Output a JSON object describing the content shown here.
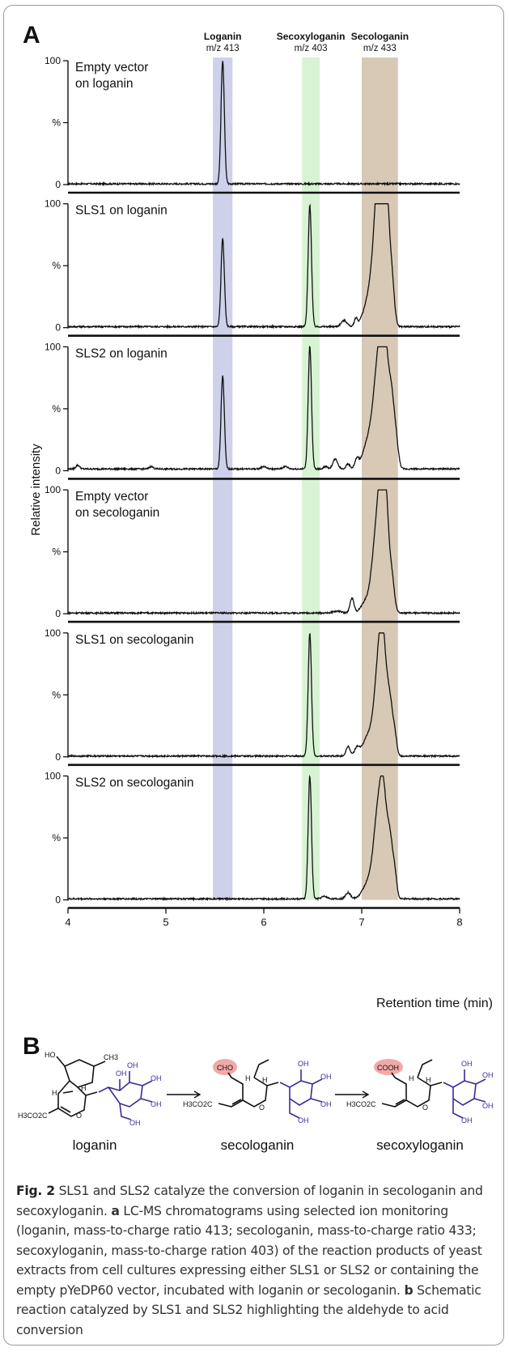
{
  "panel_a": {
    "letter": "A",
    "y_axis_label": "Relative intensity",
    "x_axis_label": "Retention time (min)"
  },
  "panel_b": {
    "letter": "B",
    "compounds": [
      {
        "name": "loganin",
        "substituents": [
          "HO",
          "CH3",
          "H",
          "H",
          "H3CO2C",
          "O",
          "OH"
        ]
      },
      {
        "name": "secologanin",
        "highlight": "CHO",
        "substituents": [
          "H",
          "H",
          "H3CO2C",
          "O",
          "OH"
        ]
      },
      {
        "name": "secoxyloganin",
        "highlight": "COOH",
        "substituents": [
          "H",
          "H",
          "H3CO2C",
          "O",
          "OH"
        ]
      }
    ],
    "colors": {
      "highlight": "#f2a8a8",
      "sugar": "#3d2a9a",
      "skeleton": "#111111"
    }
  },
  "caption": {
    "fig_label": "Fig. 2",
    "title_text": " SLS1 and SLS2 catalyze the conversion of loganin in secologanin and secoxyloganin. ",
    "part_a_letter": "a",
    "part_a_text": " LC-MS chromatograms using selected ion monitoring (loganin, mass-to-charge ratio 413; secologanin, mass-to-charge ratio 433; secoxyloganin, mass-to-charge ration 403) of the reaction products of yeast extracts from cell cultures expressing either SLS1 or SLS2 or containing the empty pYeDP60 vector, incubated with loganin or secologanin. ",
    "part_b_letter": "b",
    "part_b_text": " Schematic reaction catalyzed by SLS1 and SLS2 highlighting the aldehyde to acid conversion"
  },
  "chart_data": {
    "type": "line",
    "xlabel": "Retention time (min)",
    "ylabel": "Relative intensity",
    "xlim": [
      4,
      8
    ],
    "x_ticks": [
      "4",
      "5",
      "6",
      "7",
      "8"
    ],
    "y_ticks": [
      "0",
      "%",
      "100"
    ],
    "ylim": [
      0,
      100
    ],
    "grid": false,
    "highlight_bands": [
      {
        "name": "Loganin",
        "subtitle": "m/z 413",
        "x_range": [
          5.48,
          5.68
        ],
        "color": "#cfd0ea"
      },
      {
        "name": "Secoxyloganin",
        "subtitle": "m/z 403",
        "x_range": [
          6.39,
          6.57
        ],
        "color": "#d8f2d4"
      },
      {
        "name": "Secologanin",
        "subtitle": "m/z 433",
        "x_range": [
          7.0,
          7.37
        ],
        "color": "#d7c9b5"
      }
    ],
    "series": [
      {
        "label_lines": [
          "Empty vector",
          "on loganin"
        ],
        "baseline": 0.6,
        "peaks": [
          [
            5.58,
            99,
            0.017
          ]
        ],
        "wiggles": []
      },
      {
        "label_lines": [
          "SLS1 on loganin"
        ],
        "baseline": 0.8,
        "peaks": [
          [
            5.58,
            71,
            0.017
          ],
          [
            6.47,
            98,
            0.017
          ],
          [
            6.82,
            5,
            0.03
          ],
          [
            6.94,
            6,
            0.015
          ],
          [
            7.08,
            22,
            0.06
          ],
          [
            7.16,
            78,
            0.045
          ],
          [
            7.2,
            93,
            0.035
          ],
          [
            7.255,
            86,
            0.03
          ],
          [
            7.31,
            32,
            0.025
          ]
        ],
        "wiggles": []
      },
      {
        "label_lines": [
          "SLS2 on loganin"
        ],
        "baseline": 1.4,
        "peaks": [
          [
            4.1,
            3,
            0.02
          ],
          [
            4.85,
            2,
            0.02
          ],
          [
            5.58,
            75,
            0.017
          ],
          [
            6.0,
            2,
            0.025
          ],
          [
            6.22,
            2,
            0.025
          ],
          [
            6.47,
            99,
            0.017
          ],
          [
            6.63,
            2,
            0.02
          ],
          [
            6.73,
            8,
            0.025
          ],
          [
            6.86,
            4,
            0.02
          ],
          [
            6.95,
            7,
            0.02
          ],
          [
            7.08,
            25,
            0.06
          ],
          [
            7.17,
            75,
            0.045
          ],
          [
            7.23,
            92,
            0.035
          ],
          [
            7.3,
            55,
            0.03
          ],
          [
            7.35,
            20,
            0.025
          ]
        ],
        "wiggles": []
      },
      {
        "label_lines": [
          "Empty vector",
          "on secologanin"
        ],
        "baseline": 0.6,
        "peaks": [
          [
            6.75,
            1.5,
            0.04
          ],
          [
            6.9,
            12,
            0.02
          ],
          [
            7.05,
            10,
            0.05
          ],
          [
            7.14,
            50,
            0.04
          ],
          [
            7.2,
            90,
            0.035
          ],
          [
            7.25,
            70,
            0.03
          ],
          [
            7.31,
            25,
            0.025
          ]
        ],
        "wiggles": []
      },
      {
        "label_lines": [
          "SLS1 on secologanin"
        ],
        "baseline": 0.6,
        "peaks": [
          [
            6.47,
            99,
            0.017
          ],
          [
            6.86,
            8,
            0.02
          ],
          [
            6.95,
            6,
            0.025
          ],
          [
            7.08,
            18,
            0.06
          ],
          [
            7.17,
            60,
            0.04
          ],
          [
            7.22,
            74,
            0.035
          ],
          [
            7.29,
            40,
            0.03
          ],
          [
            7.34,
            12,
            0.02
          ]
        ],
        "wiggles": []
      },
      {
        "label_lines": [
          "SLS2 on secologanin"
        ],
        "baseline": 0.8,
        "peaks": [
          [
            6.47,
            99,
            0.017
          ],
          [
            6.62,
            2,
            0.03
          ],
          [
            6.86,
            5,
            0.025
          ],
          [
            7.08,
            15,
            0.06
          ],
          [
            7.16,
            55,
            0.04
          ],
          [
            7.22,
            77,
            0.035
          ],
          [
            7.29,
            45,
            0.03
          ],
          [
            7.34,
            15,
            0.02
          ]
        ],
        "wiggles": []
      }
    ]
  }
}
